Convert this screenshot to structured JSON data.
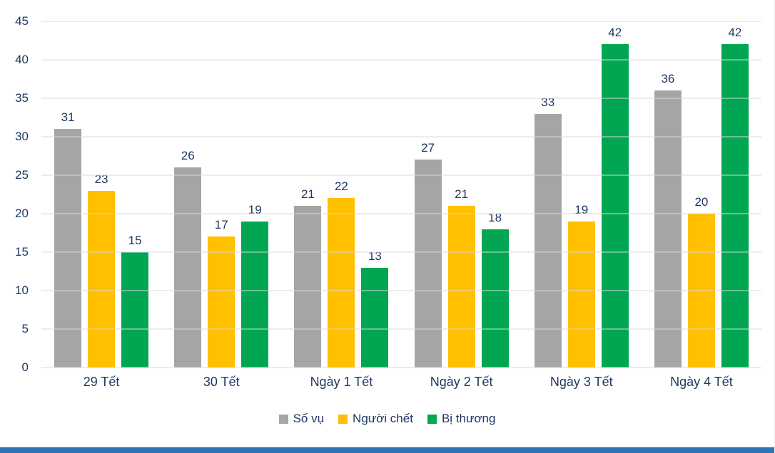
{
  "chart_data": {
    "type": "bar",
    "title": "",
    "categories": [
      "29 Tết",
      "30 Tết",
      "Ngày 1 Tết",
      "Ngày 2 Tết",
      "Ngày 3 Tết",
      "Ngày 4 Tết"
    ],
    "series": [
      {
        "name": "Số vụ",
        "color": "#A5A5A5",
        "values": [
          31,
          26,
          21,
          27,
          33,
          36
        ]
      },
      {
        "name": "Người chết",
        "color": "#FFC000",
        "values": [
          23,
          17,
          22,
          21,
          19,
          20
        ]
      },
      {
        "name": "Bị thương",
        "color": "#00A651",
        "values": [
          15,
          19,
          13,
          18,
          42,
          42
        ]
      }
    ],
    "ylim": [
      0,
      45
    ],
    "ytick_step": 5,
    "yticks": [
      0,
      5,
      10,
      15,
      20,
      25,
      30,
      35,
      40,
      45
    ],
    "grid": true,
    "legend_position": "bottom",
    "data_labels": true
  },
  "colors": {
    "axis_text": "#1F3864",
    "gridline": "#D9D9D9",
    "bottom_strip": "#2E75B6",
    "background": "#FFFFFF"
  }
}
